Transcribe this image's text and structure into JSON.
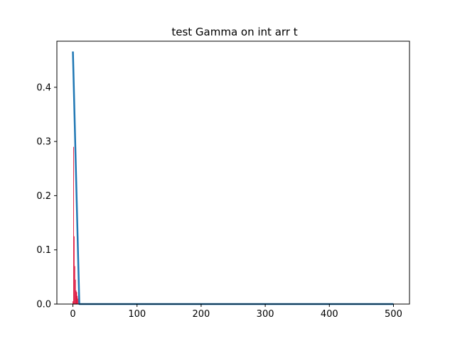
{
  "chart_data": {
    "type": "bar",
    "title": "test Gamma on int arr t",
    "xlabel": "",
    "ylabel": "",
    "xlim": [
      -25,
      525
    ],
    "ylim": [
      0,
      0.485
    ],
    "grid": false,
    "x_ticks": [
      0,
      100,
      200,
      300,
      400,
      500
    ],
    "x_tick_labels": [
      "0",
      "100",
      "200",
      "300",
      "400",
      "500"
    ],
    "y_ticks": [
      0.0,
      0.1,
      0.2,
      0.3,
      0.4
    ],
    "y_tick_labels": [
      "0.0",
      "0.1",
      "0.2",
      "0.3",
      "0.4"
    ],
    "series": [
      {
        "kind": "bar",
        "color": "#dc143c",
        "bar_width": 1,
        "x": [
          0,
          1,
          2,
          3,
          4,
          5,
          6,
          7,
          8,
          9,
          10
        ],
        "values": [
          0.005,
          0.29,
          0.125,
          0.07,
          0.045,
          0.025,
          0.022,
          0.015,
          0.01,
          0.006,
          0.004
        ]
      },
      {
        "kind": "line",
        "color": "#1f77b4",
        "x": [
          0,
          10,
          20,
          50,
          100,
          200,
          300,
          400,
          500
        ],
        "values": [
          0.466,
          0.0,
          0.0,
          0.0,
          0.0,
          0.0,
          0.0,
          0.0,
          0.0
        ]
      }
    ]
  }
}
